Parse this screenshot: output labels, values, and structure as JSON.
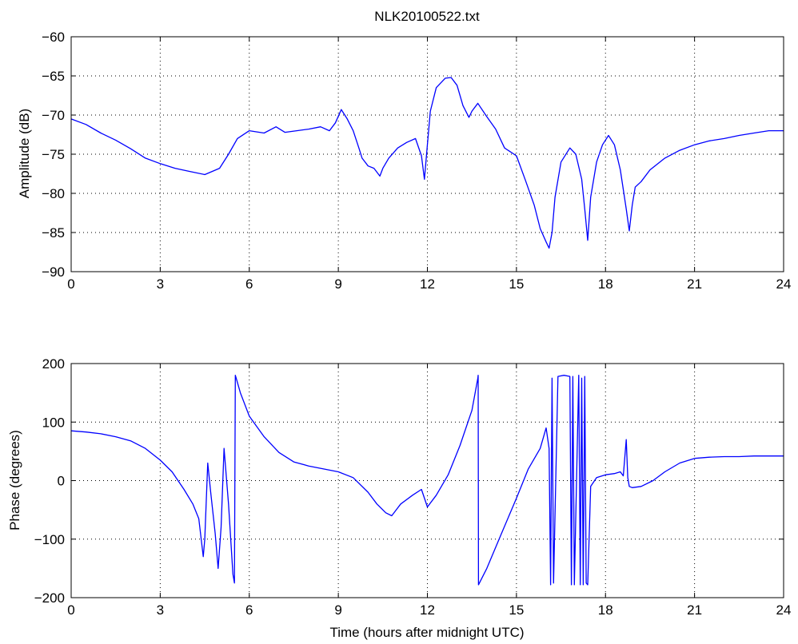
{
  "chart_data": [
    {
      "type": "line",
      "title": "NLK20100522.txt",
      "xlabel": "",
      "ylabel": "Amplitude (dB)",
      "xlim": [
        0,
        24
      ],
      "ylim": [
        -90,
        -60
      ],
      "xticks": [
        "0",
        "3",
        "6",
        "9",
        "12",
        "15",
        "18",
        "21",
        "24"
      ],
      "yticks": [
        "−90",
        "−85",
        "−80",
        "−75",
        "−70",
        "−65",
        "−60"
      ],
      "grid": true,
      "line_color": "#0000ff",
      "series": [
        {
          "x": [
            0,
            0.5,
            1,
            1.5,
            2,
            2.5,
            3,
            3.5,
            4,
            4.5,
            5,
            5.3,
            5.6,
            6,
            6.5,
            6.9,
            7.2,
            7.6,
            8,
            8.4,
            8.7,
            8.9,
            9.1,
            9.3,
            9.5,
            9.7,
            9.8,
            10,
            10.2,
            10.4,
            10.5,
            10.7,
            11,
            11.3,
            11.6,
            11.8,
            11.9,
            12,
            12.1,
            12.3,
            12.6,
            12.8,
            13,
            13.2,
            13.4,
            13.5,
            13.7,
            14,
            14.3,
            14.6,
            15,
            15.3,
            15.6,
            15.8,
            16,
            16.1,
            16.2,
            16.3,
            16.5,
            16.8,
            17,
            17.2,
            17.3,
            17.4,
            17.5,
            17.7,
            17.9,
            18.1,
            18.3,
            18.5,
            18.7,
            18.8,
            18.9,
            19,
            19.2,
            19.5,
            20,
            20.5,
            21,
            21.5,
            22,
            22.5,
            23,
            23.5,
            24
          ],
          "y": [
            -70.5,
            -71.2,
            -72.3,
            -73.2,
            -74.3,
            -75.5,
            -76.2,
            -76.8,
            -77.2,
            -77.6,
            -76.8,
            -75,
            -73,
            -72,
            -72.3,
            -71.5,
            -72.2,
            -72,
            -71.8,
            -71.5,
            -72,
            -71,
            -69.3,
            -70.5,
            -72,
            -74.3,
            -75.5,
            -76.5,
            -76.8,
            -77.8,
            -76.8,
            -75.5,
            -74.2,
            -73.5,
            -73,
            -75.2,
            -78.2,
            -73.8,
            -69.5,
            -66.5,
            -65.3,
            -65.2,
            -66.2,
            -68.8,
            -70.3,
            -69.5,
            -68.5,
            -70.2,
            -71.8,
            -74.2,
            -75.2,
            -78.3,
            -81.5,
            -84.5,
            -86.2,
            -87,
            -85,
            -80.5,
            -76,
            -74.2,
            -75,
            -78.2,
            -82,
            -86,
            -80.5,
            -76,
            -73.8,
            -72.6,
            -73.8,
            -77,
            -82,
            -84.8,
            -81.5,
            -79.2,
            -78.5,
            -77,
            -75.5,
            -74.5,
            -73.8,
            -73.3,
            -73,
            -72.6,
            -72.3,
            -72,
            -72
          ]
        }
      ]
    },
    {
      "type": "line",
      "title": "",
      "xlabel": "Time (hours after midnight UTC)",
      "ylabel": "Phase (degrees)",
      "xlim": [
        0,
        24
      ],
      "ylim": [
        -200,
        200
      ],
      "xticks": [
        "0",
        "3",
        "6",
        "9",
        "12",
        "15",
        "18",
        "21",
        "24"
      ],
      "yticks": [
        "−200",
        "−100",
        "0",
        "100",
        "200"
      ],
      "grid": true,
      "line_color": "#0000ff",
      "series": [
        {
          "x": [
            0,
            0.5,
            1,
            1.5,
            2,
            2.5,
            3,
            3.4,
            3.8,
            4.1,
            4.3,
            4.45,
            4.5,
            4.6,
            4.7,
            4.85,
            4.95,
            5.05,
            5.15,
            5.3,
            5.45,
            5.5,
            5.53,
            5.56,
            5.7,
            6,
            6.5,
            7,
            7.5,
            8,
            8.5,
            9,
            9.5,
            10,
            10.3,
            10.6,
            10.8,
            11.1,
            11.5,
            11.8,
            12,
            12.3,
            12.7,
            13.1,
            13.5,
            13.7,
            13.71,
            13.72,
            14,
            14.5,
            15,
            15.4,
            15.8,
            16,
            16.1,
            16.15,
            16.2,
            16.25,
            16.4,
            16.6,
            16.8,
            16.85,
            16.9,
            16.95,
            17.1,
            17.15,
            17.2,
            17.25,
            17.3,
            17.35,
            17.4,
            17.5,
            17.7,
            18,
            18.3,
            18.5,
            18.6,
            18.7,
            18.75,
            18.8,
            18.9,
            19.2,
            19.6,
            20,
            20.5,
            21,
            21.5,
            22,
            22.5,
            23,
            23.5,
            24
          ],
          "y": [
            85,
            83,
            80,
            75,
            68,
            55,
            35,
            15,
            -15,
            -40,
            -65,
            -130,
            -100,
            30,
            -20,
            -90,
            -150,
            -80,
            55,
            -40,
            -160,
            -175,
            180,
            175,
            150,
            110,
            75,
            48,
            32,
            25,
            20,
            15,
            5,
            -20,
            -40,
            -55,
            -60,
            -40,
            -25,
            -15,
            -45,
            -25,
            10,
            60,
            120,
            175,
            180,
            -178,
            -150,
            -90,
            -30,
            20,
            55,
            90,
            55,
            -178,
            175,
            -175,
            178,
            180,
            178,
            -178,
            178,
            -178,
            180,
            -178,
            175,
            -178,
            178,
            -175,
            -178,
            -10,
            5,
            10,
            12,
            15,
            8,
            70,
            5,
            -10,
            -12,
            -10,
            0,
            15,
            30,
            38,
            40,
            41,
            41,
            42,
            42,
            42
          ]
        }
      ]
    }
  ]
}
